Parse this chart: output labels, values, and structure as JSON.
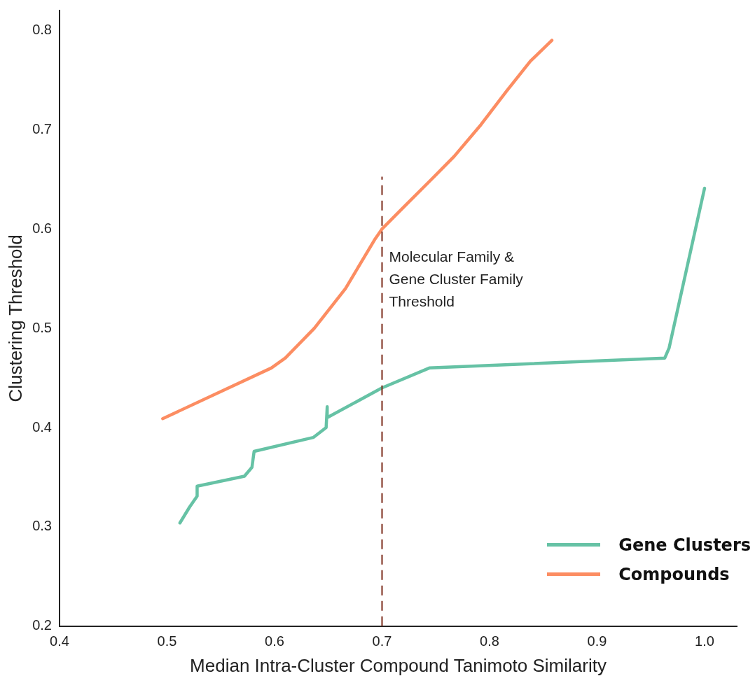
{
  "chart_data": {
    "type": "line",
    "xlabel": "Median Intra-Cluster Compound Tanimoto Similarity",
    "ylabel": "Clustering Threshold",
    "xlim": [
      0.4,
      1.03
    ],
    "ylim": [
      0.2,
      0.82
    ],
    "xticks": [
      0.4,
      0.5,
      0.6,
      0.7,
      0.8,
      0.9,
      {
        "value": 1.0,
        "label": "1.0"
      }
    ],
    "yticks": [
      0.2,
      0.3,
      0.4,
      0.5,
      0.6,
      0.7,
      0.8
    ],
    "grid": false,
    "legend": "bottom right",
    "marker": "none",
    "line_style": "solid",
    "series": [
      {
        "name": "Gene Clusters",
        "color": "#66c2a5",
        "x": [
          0.512,
          0.521,
          0.528,
          0.528,
          0.572,
          0.579,
          0.581,
          0.636,
          0.648,
          0.649,
          0.649,
          0.7,
          0.744,
          0.963,
          0.967,
          1.0
        ],
        "values": [
          0.304,
          0.32,
          0.331,
          0.341,
          0.351,
          0.36,
          0.376,
          0.39,
          0.4,
          0.421,
          0.41,
          0.44,
          0.46,
          0.47,
          0.48,
          0.641
        ]
      },
      {
        "name": "Compounds",
        "color": "#fc8d62",
        "x": [
          0.496,
          0.597,
          0.61,
          0.637,
          0.666,
          0.693,
          0.7,
          0.721,
          0.746,
          0.767,
          0.792,
          0.816,
          0.838,
          0.858
        ],
        "values": [
          0.409,
          0.46,
          0.47,
          0.5,
          0.54,
          0.589,
          0.6,
          0.623,
          0.65,
          0.673,
          0.705,
          0.739,
          0.769,
          0.79
        ]
      }
    ],
    "ref_lines": [
      {
        "axis": "x",
        "value": 0.7,
        "label": "Molecular Family & Gene Cluster Family Threshold",
        "color": "#7b2a1a",
        "line_style": "dashed"
      }
    ]
  }
}
